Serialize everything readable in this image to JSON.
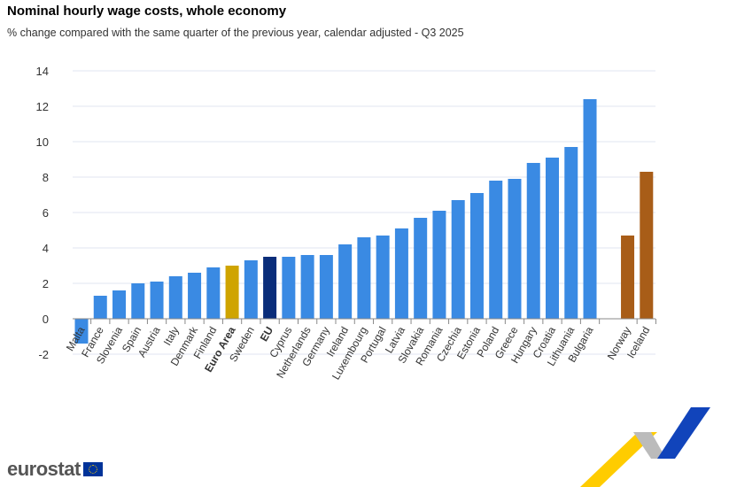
{
  "chart_data": {
    "type": "bar",
    "title": "Nominal hourly wage costs, whole economy",
    "subtitle": "% change compared with the same quarter of the previous year, calendar adjusted - Q3 2025",
    "xlabel": "",
    "ylabel": "",
    "ylim": [
      -2,
      14
    ],
    "yticks": [
      -2,
      0,
      2,
      4,
      6,
      8,
      10,
      12,
      14
    ],
    "grid": true,
    "categories": [
      "Malta",
      "France",
      "Slovenia",
      "Spain",
      "Austria",
      "Italy",
      "Denmark",
      "Finland",
      "Euro Area",
      "Sweden",
      "EU",
      "Cyprus",
      "Netherlands",
      "Germany",
      "Ireland",
      "Luxembourg",
      "Portugal",
      "Latvia",
      "Slovakia",
      "Romania",
      "Czechia",
      "Estonia",
      "Poland",
      "Greece",
      "Hungary",
      "Croatia",
      "Lithuania",
      "Bulgaria",
      "",
      "Norway",
      "Iceland"
    ],
    "values": [
      -1.4,
      1.3,
      1.6,
      2.0,
      2.1,
      2.4,
      2.6,
      2.9,
      3.0,
      3.3,
      3.5,
      3.5,
      3.6,
      3.6,
      4.2,
      4.6,
      4.7,
      5.1,
      5.7,
      6.1,
      6.7,
      7.1,
      7.8,
      7.9,
      8.8,
      9.1,
      9.7,
      12.4,
      null,
      4.7,
      8.3
    ],
    "bold_categories": [
      "Euro Area",
      "EU"
    ],
    "colors": {
      "member": "#3a8ae3",
      "euro_area": "#cfa400",
      "eu": "#0a2d7a",
      "efta": "#a85d18",
      "grid": "#e1e6f0",
      "axis": "#888888"
    }
  },
  "branding": {
    "logo_text": "eurostat"
  }
}
